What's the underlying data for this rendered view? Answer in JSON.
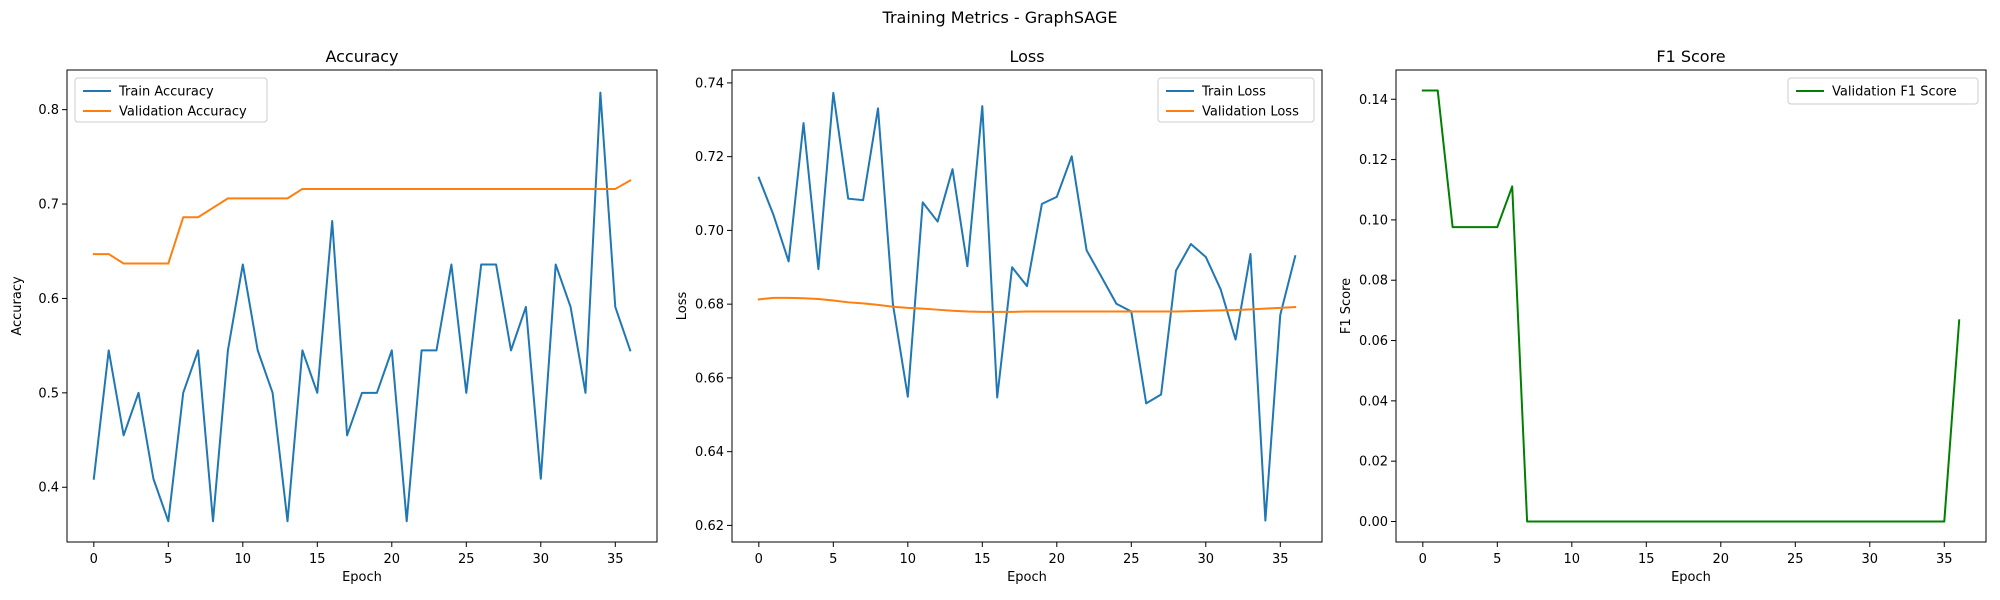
{
  "figure": {
    "suptitle": "Training Metrics - GraphSAGE"
  },
  "chart_data": [
    {
      "type": "line",
      "title": "Accuracy",
      "xlabel": "Epoch",
      "ylabel": "Accuracy",
      "xlim": [
        -1.8,
        37.8
      ],
      "ylim": [
        0.342,
        0.842
      ],
      "xticks": [
        0,
        5,
        10,
        15,
        20,
        25,
        30,
        35
      ],
      "xtick_labels": [
        "0",
        "5",
        "10",
        "15",
        "20",
        "25",
        "30",
        "35"
      ],
      "yticks": [
        0.4,
        0.5,
        0.6,
        0.7,
        0.8
      ],
      "ytick_labels": [
        "0.4",
        "0.5",
        "0.6",
        "0.7",
        "0.8"
      ],
      "legend": "upper left",
      "grid": false,
      "series": [
        {
          "name": "Train Accuracy",
          "color": "#1f77b4",
          "x": [
            0,
            1,
            2,
            3,
            4,
            5,
            6,
            7,
            8,
            9,
            10,
            11,
            12,
            13,
            14,
            15,
            16,
            17,
            18,
            19,
            20,
            21,
            22,
            23,
            24,
            25,
            26,
            27,
            28,
            29,
            30,
            31,
            32,
            33,
            34,
            35,
            36
          ],
          "y": [
            0.409,
            0.545,
            0.455,
            0.5,
            0.409,
            0.364,
            0.5,
            0.545,
            0.364,
            0.545,
            0.636,
            0.545,
            0.5,
            0.364,
            0.545,
            0.5,
            0.682,
            0.455,
            0.5,
            0.5,
            0.545,
            0.364,
            0.545,
            0.545,
            0.636,
            0.5,
            0.636,
            0.636,
            0.545,
            0.591,
            0.409,
            0.636,
            0.591,
            0.5,
            0.818,
            0.591,
            0.545
          ]
        },
        {
          "name": "Validation Accuracy",
          "color": "#ff7f0e",
          "x": [
            0,
            1,
            2,
            3,
            4,
            5,
            6,
            7,
            8,
            9,
            10,
            11,
            12,
            13,
            14,
            15,
            16,
            17,
            18,
            19,
            20,
            21,
            22,
            23,
            24,
            25,
            26,
            27,
            28,
            29,
            30,
            31,
            32,
            33,
            34,
            35,
            36
          ],
          "y": [
            0.647,
            0.647,
            0.637,
            0.637,
            0.637,
            0.637,
            0.686,
            0.686,
            0.696,
            0.706,
            0.706,
            0.706,
            0.706,
            0.706,
            0.716,
            0.716,
            0.716,
            0.716,
            0.716,
            0.716,
            0.716,
            0.716,
            0.716,
            0.716,
            0.716,
            0.716,
            0.716,
            0.716,
            0.716,
            0.716,
            0.716,
            0.716,
            0.716,
            0.716,
            0.716,
            0.716,
            0.725
          ]
        }
      ]
    },
    {
      "type": "line",
      "title": "Loss",
      "xlabel": "Epoch",
      "ylabel": "Loss",
      "xlim": [
        -1.8,
        37.8
      ],
      "ylim": [
        0.6155,
        0.7435
      ],
      "xticks": [
        0,
        5,
        10,
        15,
        20,
        25,
        30,
        35
      ],
      "xtick_labels": [
        "0",
        "5",
        "10",
        "15",
        "20",
        "25",
        "30",
        "35"
      ],
      "yticks": [
        0.62,
        0.64,
        0.66,
        0.68,
        0.7,
        0.72,
        0.74
      ],
      "ytick_labels": [
        "0.62",
        "0.64",
        "0.66",
        "0.68",
        "0.70",
        "0.72",
        "0.74"
      ],
      "legend": "upper right",
      "grid": false,
      "series": [
        {
          "name": "Train Loss",
          "color": "#1f77b4",
          "x": [
            0,
            1,
            2,
            3,
            4,
            5,
            6,
            7,
            8,
            9,
            10,
            11,
            12,
            13,
            14,
            15,
            16,
            17,
            18,
            19,
            20,
            21,
            22,
            23,
            24,
            25,
            26,
            27,
            28,
            29,
            30,
            31,
            32,
            33,
            34,
            35,
            36
          ],
          "y": [
            0.7143,
            0.704,
            0.6916,
            0.7291,
            0.6895,
            0.7373,
            0.7086,
            0.7082,
            0.7331,
            0.68,
            0.6549,
            0.7076,
            0.7024,
            0.7166,
            0.6903,
            0.7337,
            0.6547,
            0.69,
            0.6849,
            0.7072,
            0.7091,
            0.7201,
            0.6946,
            0.6874,
            0.6801,
            0.678,
            0.6531,
            0.6555,
            0.6891,
            0.6963,
            0.6928,
            0.684,
            0.6704,
            0.6936,
            0.6213,
            0.6771,
            0.693
          ]
        },
        {
          "name": "Validation Loss",
          "color": "#ff7f0e",
          "x": [
            0,
            1,
            2,
            3,
            4,
            5,
            6,
            7,
            8,
            9,
            10,
            11,
            12,
            13,
            14,
            15,
            16,
            17,
            18,
            19,
            20,
            21,
            22,
            23,
            24,
            25,
            26,
            27,
            28,
            29,
            30,
            31,
            32,
            33,
            34,
            35,
            36
          ],
          "y": [
            0.6813,
            0.6817,
            0.6817,
            0.6816,
            0.6814,
            0.681,
            0.6805,
            0.6802,
            0.6798,
            0.6793,
            0.679,
            0.6788,
            0.6785,
            0.6782,
            0.678,
            0.6779,
            0.6779,
            0.6779,
            0.678,
            0.678,
            0.678,
            0.678,
            0.678,
            0.678,
            0.678,
            0.678,
            0.678,
            0.678,
            0.678,
            0.6781,
            0.6782,
            0.6783,
            0.6784,
            0.6786,
            0.6788,
            0.679,
            0.6792
          ]
        }
      ]
    },
    {
      "type": "line",
      "title": "F1 Score",
      "xlabel": "Epoch",
      "ylabel": "F1 Score",
      "xlim": [
        -1.8,
        37.8
      ],
      "ylim": [
        -0.0068,
        0.1497
      ],
      "xticks": [
        0,
        5,
        10,
        15,
        20,
        25,
        30,
        35
      ],
      "xtick_labels": [
        "0",
        "5",
        "10",
        "15",
        "20",
        "25",
        "30",
        "35"
      ],
      "yticks": [
        0.0,
        0.02,
        0.04,
        0.06,
        0.08,
        0.1,
        0.12,
        0.14
      ],
      "ytick_labels": [
        "0.00",
        "0.02",
        "0.04",
        "0.06",
        "0.08",
        "0.10",
        "0.12",
        "0.14"
      ],
      "legend": "upper right",
      "grid": false,
      "series": [
        {
          "name": "Validation F1 Score",
          "color": "#008000",
          "x": [
            0,
            1,
            2,
            3,
            4,
            5,
            6,
            7,
            8,
            9,
            10,
            11,
            12,
            13,
            14,
            15,
            16,
            17,
            18,
            19,
            20,
            21,
            22,
            23,
            24,
            25,
            26,
            27,
            28,
            29,
            30,
            31,
            32,
            33,
            34,
            35,
            36
          ],
          "y": [
            0.1429,
            0.1429,
            0.0976,
            0.0976,
            0.0976,
            0.0976,
            0.1111,
            0,
            0,
            0,
            0,
            0,
            0,
            0,
            0,
            0,
            0,
            0,
            0,
            0,
            0,
            0,
            0,
            0,
            0,
            0,
            0,
            0,
            0,
            0,
            0,
            0,
            0,
            0,
            0,
            0,
            0.0667
          ]
        }
      ]
    }
  ]
}
